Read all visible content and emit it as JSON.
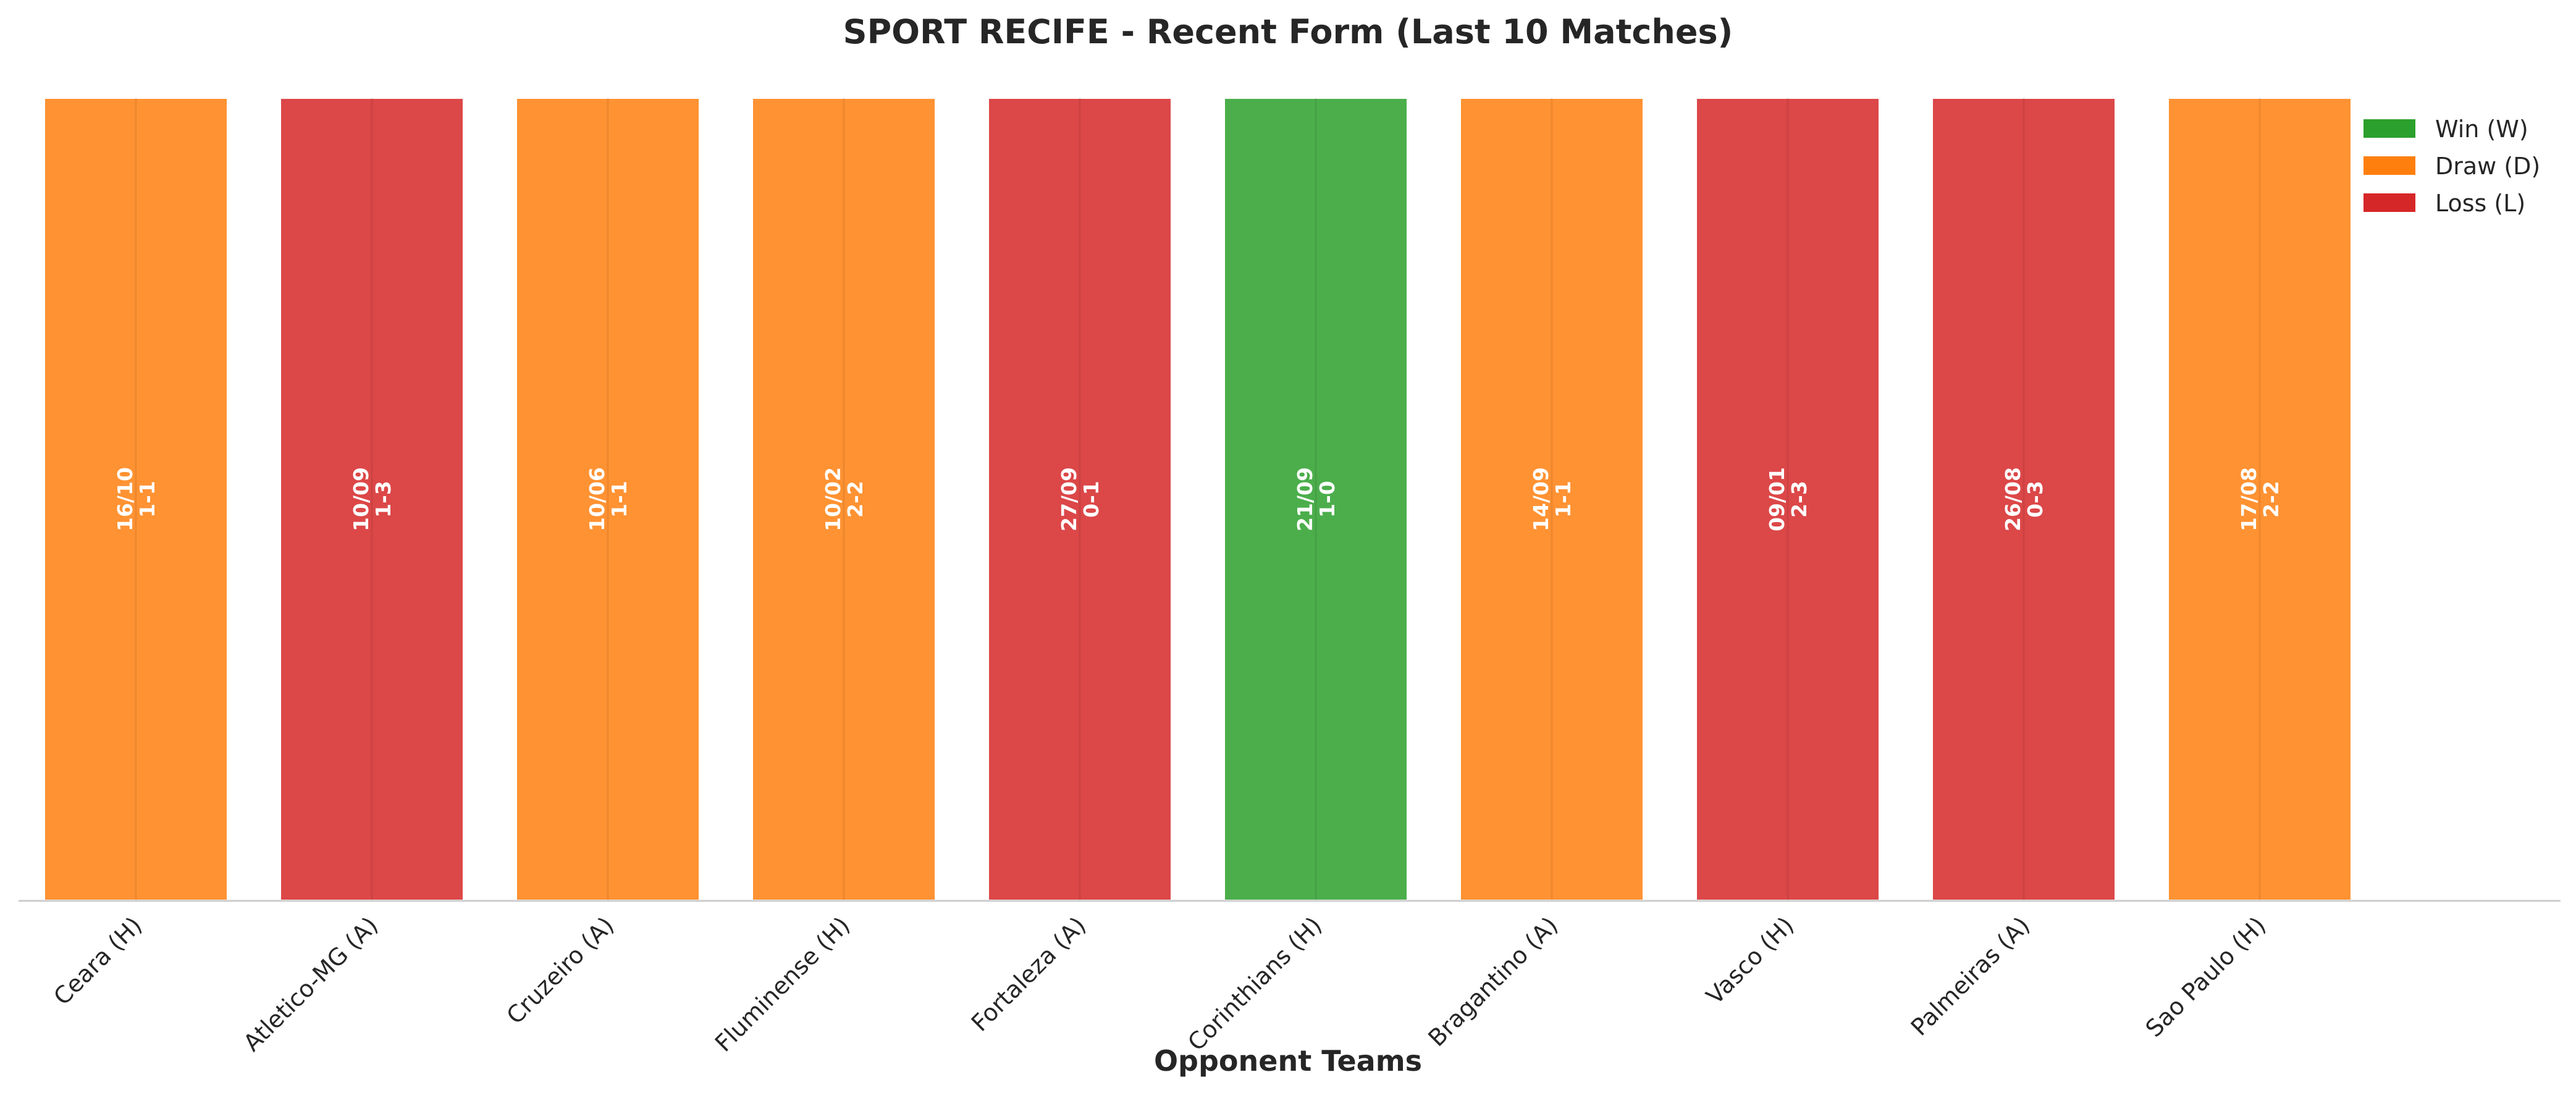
{
  "chart_data": {
    "type": "bar",
    "title": "SPORT RECIFE - Recent Form (Last 10 Matches)",
    "xlabel": "Opponent Teams",
    "ylabel": "",
    "ylim": [
      0,
      1
    ],
    "grid": false,
    "legend_position": "top-right",
    "categories": [
      "Ceara (H)",
      "Atletico-MG (A)",
      "Cruzeiro (A)",
      "Fluminense (H)",
      "Fortaleza (A)",
      "Corinthians (H)",
      "Bragantino (A)",
      "Vasco (H)",
      "Palmeiras (A)",
      "Sao Paulo (H)"
    ],
    "values": [
      1,
      1,
      1,
      1,
      1,
      1,
      1,
      1,
      1,
      1
    ],
    "results": [
      "D",
      "L",
      "D",
      "D",
      "L",
      "W",
      "D",
      "L",
      "L",
      "D"
    ],
    "dates": [
      "16/10",
      "10/09",
      "10/06",
      "10/02",
      "27/09",
      "21/09",
      "14/09",
      "09/01",
      "26/08",
      "17/08"
    ],
    "scores": [
      "1-1",
      "1-3",
      "1-1",
      "2-2",
      "0-1",
      "1-0",
      "1-1",
      "2-3",
      "0-3",
      "2-2"
    ],
    "legend": [
      {
        "key": "W",
        "label": "Win (W)",
        "color": "#2ca02c"
      },
      {
        "key": "D",
        "label": "Draw (D)",
        "color": "#ff7f0e"
      },
      {
        "key": "L",
        "label": "Loss (L)",
        "color": "#d62728"
      }
    ]
  }
}
